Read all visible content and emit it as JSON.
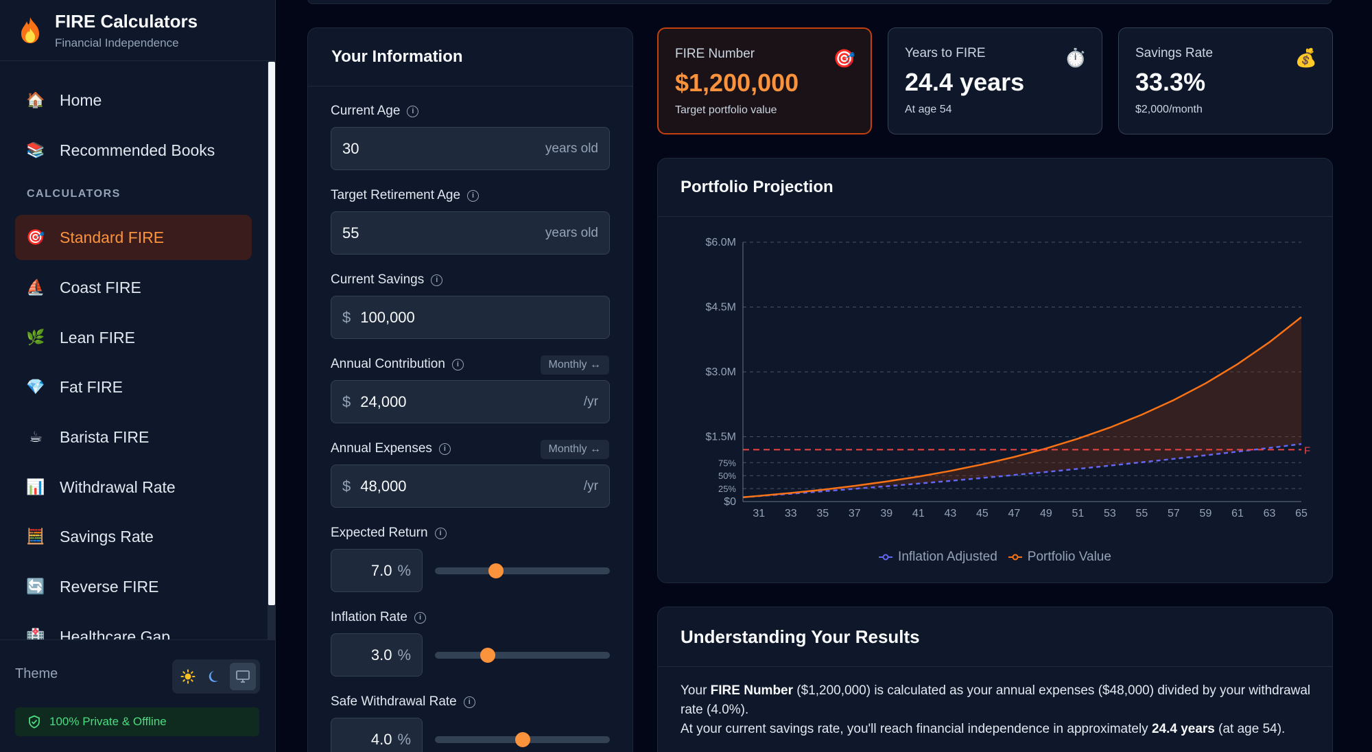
{
  "brand": {
    "title": "FIRE Calculators",
    "subtitle": "Financial Independence",
    "logo_icon": "fire-icon"
  },
  "nav": {
    "items": [
      {
        "label": "Home",
        "icon": "house-icon",
        "emoji": "🏠"
      },
      {
        "label": "Recommended Books",
        "icon": "books-icon",
        "emoji": "📚"
      }
    ],
    "section_label": "CALCULATORS",
    "calculators": [
      {
        "label": "Standard FIRE",
        "icon": "target-icon",
        "emoji": "🎯",
        "active": true
      },
      {
        "label": "Coast FIRE",
        "icon": "sailboat-icon",
        "emoji": "⛵"
      },
      {
        "label": "Lean FIRE",
        "icon": "herb-icon",
        "emoji": "🌿"
      },
      {
        "label": "Fat FIRE",
        "icon": "gem-icon",
        "emoji": "💎"
      },
      {
        "label": "Barista FIRE",
        "icon": "coffee-icon",
        "emoji": "☕"
      },
      {
        "label": "Withdrawal Rate",
        "icon": "bar-chart-icon",
        "emoji": "📊"
      },
      {
        "label": "Savings Rate",
        "icon": "abacus-icon",
        "emoji": "🧮"
      },
      {
        "label": "Reverse FIRE",
        "icon": "repeat-icon",
        "emoji": "🔄"
      },
      {
        "label": "Healthcare Gap",
        "icon": "hospital-icon",
        "emoji": "🏥"
      }
    ]
  },
  "footer": {
    "theme_label": "Theme",
    "private_label": "100% Private & Offline",
    "theme_options": [
      "sun-icon",
      "moon-icon",
      "monitor-icon"
    ]
  },
  "form": {
    "title": "Your Information",
    "current_age": {
      "label": "Current Age",
      "value": "30",
      "suffix": "years old"
    },
    "target_age": {
      "label": "Target Retirement Age",
      "value": "55",
      "suffix": "years old"
    },
    "current_savings": {
      "label": "Current Savings",
      "prefix": "$",
      "value": "100,000"
    },
    "annual_contribution": {
      "label": "Annual Contribution",
      "prefix": "$",
      "value": "24,000",
      "suffix": "/yr",
      "toggle": "Monthly ↔"
    },
    "annual_expenses": {
      "label": "Annual Expenses",
      "prefix": "$",
      "value": "48,000",
      "suffix": "/yr",
      "toggle": "Monthly ↔"
    },
    "expected_return": {
      "label": "Expected Return",
      "value": "7.0",
      "unit": "%",
      "slider": 0.35
    },
    "inflation_rate": {
      "label": "Inflation Rate",
      "value": "3.0",
      "unit": "%",
      "slider": 0.3
    },
    "safe_withdrawal": {
      "label": "Safe Withdrawal Rate",
      "value": "4.0",
      "unit": "%",
      "slider": 0.5
    }
  },
  "stats": [
    {
      "label": "FIRE Number",
      "value": "$1,200,000",
      "sub": "Target portfolio value",
      "emoji": "🎯"
    },
    {
      "label": "Years to FIRE",
      "value": "24.4 years",
      "sub": "At age 54",
      "emoji": "⏱️"
    },
    {
      "label": "Savings Rate",
      "value": "33.3%",
      "sub": "$2,000/month",
      "emoji": "💰"
    }
  ],
  "colors": {
    "accent": "#fb923c",
    "inflation": "#6366f1",
    "target": "#ef4444"
  },
  "chart": {
    "title": "Portfolio Projection",
    "legend": [
      "Inflation Adjusted",
      "Portfolio Value"
    ],
    "target_marker": "F"
  },
  "chart_data": {
    "type": "line",
    "title": "Portfolio Projection",
    "x": [
      30,
      31,
      33,
      35,
      37,
      39,
      41,
      43,
      45,
      47,
      49,
      51,
      53,
      55,
      57,
      59,
      61,
      63,
      65
    ],
    "x_ticks": [
      "31",
      "33",
      "35",
      "37",
      "39",
      "41",
      "43",
      "45",
      "47",
      "49",
      "51",
      "53",
      "55",
      "57",
      "59",
      "61",
      "63",
      "65"
    ],
    "y_ticks": [
      "$0",
      "25%",
      "50%",
      "75%",
      "$1.5M",
      "$3.0M",
      "$4.5M",
      "$6.0M"
    ],
    "ylim": [
      0,
      6000000
    ],
    "series": [
      {
        "name": "Portfolio Value",
        "values": [
          100000,
          131000,
          198000,
          275000,
          363000,
          463000,
          578000,
          709000,
          860000,
          1032000,
          1229000,
          1455000,
          1713000,
          2009000,
          2348000,
          2735000,
          3179000,
          3687000,
          4269000
        ]
      },
      {
        "name": "Inflation Adjusted",
        "values": [
          100000,
          127000,
          181000,
          237000,
          295000,
          354000,
          416000,
          480000,
          546000,
          614000,
          684000,
          757000,
          832000,
          909000,
          988000,
          1070000,
          1155000,
          1242000,
          1332000
        ]
      }
    ],
    "target_line": 1200000,
    "grid": true,
    "legend_position": "bottom"
  },
  "results": {
    "title": "Understanding Your Results",
    "p1_a": "Your ",
    "p1_b": "FIRE Number",
    "p1_c": " ($1,200,000) is calculated as your annual expenses ($48,000) divided by your withdrawal rate (4.0%).",
    "p2_a": "At your current savings rate, you'll reach financial independence in approximately ",
    "p2_b": "24.4 years",
    "p2_c": " (at age 54)."
  }
}
